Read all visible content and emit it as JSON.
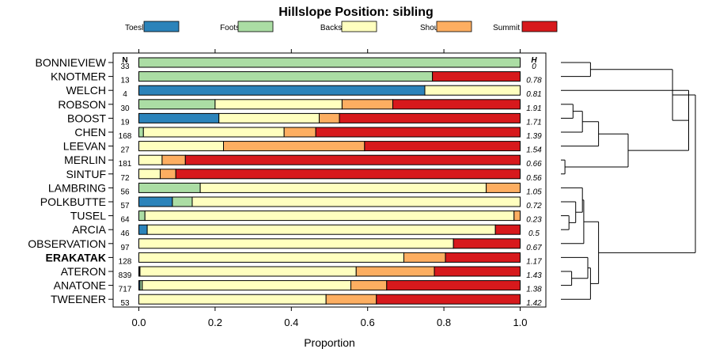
{
  "chart_data": {
    "type": "bar",
    "orientation": "horizontal",
    "stacked": true,
    "title": "Hillslope Position: sibling",
    "xlabel": "Proportion",
    "xlim": [
      0,
      1
    ],
    "xticks": [
      "0.0",
      "0.2",
      "0.4",
      "0.6",
      "0.8",
      "1.0"
    ],
    "n_header": "N",
    "h_header": "H",
    "highlight": "ERAKATAK",
    "legend_position": "top",
    "legend": [
      {
        "name": "Toeslope",
        "color": "#2B83BA"
      },
      {
        "name": "Footslope",
        "color": "#ABDDA4"
      },
      {
        "name": "Backslope",
        "color": "#FFFFBF"
      },
      {
        "name": "Shoulder",
        "color": "#FDAE61"
      },
      {
        "name": "Summit",
        "color": "#D7191C"
      }
    ],
    "rows": [
      {
        "label": "BONNIEVIEW",
        "n": "33",
        "h": "0",
        "values": [
          0,
          1,
          0,
          0,
          0
        ]
      },
      {
        "label": "KNOTMER",
        "n": "13",
        "h": "0.78",
        "values": [
          0,
          0.77,
          0,
          0,
          0.23
        ]
      },
      {
        "label": "WELCH",
        "n": "4",
        "h": "0.81",
        "values": [
          0.75,
          0,
          0.25,
          0,
          0
        ]
      },
      {
        "label": "ROBSON",
        "n": "30",
        "h": "1.91",
        "values": [
          0,
          0.2,
          0.333,
          0.133,
          0.334
        ]
      },
      {
        "label": "BOOST",
        "n": "19",
        "h": "1.71",
        "values": [
          0.21,
          0,
          0.263,
          0.053,
          0.474
        ]
      },
      {
        "label": "CHEN",
        "n": "168",
        "h": "1.39",
        "values": [
          0,
          0.012,
          0.369,
          0.083,
          0.536
        ]
      },
      {
        "label": "LEEVAN",
        "n": "27",
        "h": "1.54",
        "values": [
          0,
          0,
          0.222,
          0.37,
          0.408
        ]
      },
      {
        "label": "MERLIN",
        "n": "181",
        "h": "0.66",
        "values": [
          0,
          0,
          0.061,
          0.061,
          0.878
        ]
      },
      {
        "label": "SINTUF",
        "n": "72",
        "h": "0.56",
        "values": [
          0,
          0,
          0.056,
          0.041,
          0.903
        ]
      },
      {
        "label": "LAMBRING",
        "n": "56",
        "h": "1.05",
        "values": [
          0,
          0.161,
          0.75,
          0.089,
          0
        ]
      },
      {
        "label": "POLKBUTTE",
        "n": "57",
        "h": "0.72",
        "values": [
          0.088,
          0.052,
          0.86,
          0,
          0
        ]
      },
      {
        "label": "TUSEL",
        "n": "64",
        "h": "0.23",
        "values": [
          0,
          0.016,
          0.968,
          0.016,
          0
        ]
      },
      {
        "label": "ARCIA",
        "n": "46",
        "h": "0.5",
        "values": [
          0.022,
          0,
          0.913,
          0,
          0.065
        ]
      },
      {
        "label": "OBSERVATION",
        "n": "97",
        "h": "0.67",
        "values": [
          0,
          0,
          0.825,
          0,
          0.175
        ]
      },
      {
        "label": "ERAKATAK",
        "n": "128",
        "h": "1.17",
        "values": [
          0,
          0,
          0.695,
          0.109,
          0.196
        ]
      },
      {
        "label": "ATERON",
        "n": "839",
        "h": "1.43",
        "values": [
          0.001,
          0.002,
          0.567,
          0.205,
          0.225
        ]
      },
      {
        "label": "ANATONE",
        "n": "717",
        "h": "1.38",
        "values": [
          0.003,
          0.006,
          0.547,
          0.094,
          0.35
        ]
      },
      {
        "label": "TWEENER",
        "n": "53",
        "h": "1.42",
        "values": [
          0,
          0,
          0.491,
          0.132,
          0.377
        ]
      }
    ],
    "dendrogram": {
      "type": "hierarchical-clustering",
      "leaf_order": [
        "BONNIEVIEW",
        "KNOTMER",
        "WELCH",
        "ROBSON",
        "BOOST",
        "CHEN",
        "LEEVAN",
        "MERLIN",
        "SINTUF",
        "LAMBRING",
        "POLKBUTTE",
        "TUSEL",
        "ARCIA",
        "OBSERVATION",
        "ERAKATAK",
        "ATERON",
        "ANATONE",
        "TWEENER"
      ],
      "merges": [
        {
          "a": "BONNIEVIEW",
          "b": "KNOTMER",
          "height": 0.22
        },
        {
          "a": "ROBSON",
          "b": "BOOST",
          "height": 0.09
        },
        {
          "a": "ROBSON+BOOST",
          "b": "CHEN",
          "height": 0.16
        },
        {
          "a": "ROBSON+BOOST+CHEN",
          "b": "LEEVAN",
          "height": 0.28
        },
        {
          "a": "MERLIN",
          "b": "SINTUF",
          "height": 0.03
        },
        {
          "a": "ROBSON..LEEVAN",
          "b": "MERLIN+SINTUF",
          "height": 0.5
        },
        {
          "a": "WELCH",
          "b": "ROBSON..SINTUF",
          "height": 0.95
        },
        {
          "a": "TUSEL",
          "b": "ARCIA",
          "height": 0.06
        },
        {
          "a": "POLKBUTTE",
          "b": "TUSEL+ARCIA",
          "height": 0.11
        },
        {
          "a": "LAMBRING",
          "b": "POLKBUTTE+TUSEL+ARCIA",
          "height": 0.16
        },
        {
          "a": "LAMBRING..ARCIA",
          "b": "OBSERVATION",
          "height": 0.17
        },
        {
          "a": "ATERON",
          "b": "ANATONE",
          "height": 0.08
        },
        {
          "a": "ERAKATAK",
          "b": "ATERON+ANATONE",
          "height": 0.2
        },
        {
          "a": "ANATONE",
          "b": "TWEENER",
          "height": 0.03
        },
        {
          "a": "LAMBRING..OBSERVATION",
          "b": "ERAKATAK..TWEENER",
          "height": 0.28
        },
        {
          "a": "BONNIEVIEW..SINTUF",
          "b": "LAMBRING..TWEENER",
          "height": 1.0
        }
      ]
    }
  }
}
